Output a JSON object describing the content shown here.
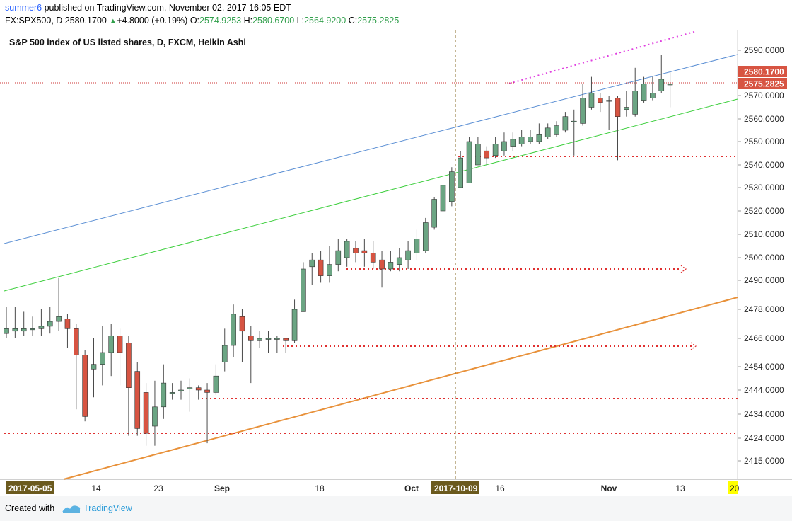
{
  "header": {
    "username": "summer6",
    "published_text": " published on TradingView.com, November 02, 2017 16:05 EDT",
    "symbol": "FX:SPX500, D",
    "last_price": "2580.1700",
    "change": "+4.8000 (+0.19%)",
    "o_label": "O:",
    "o_value": "2574.9253",
    "h_label": "H:",
    "h_value": "2580.6700",
    "l_label": "L:",
    "l_value": "2564.9200",
    "c_label": "C:",
    "c_value": "2575.2825"
  },
  "footer": {
    "created_with": "Created with",
    "brand": "TradingView"
  },
  "chart_data": {
    "type": "candlestick",
    "title": "S&P 500 index of US listed shares, D, FXCM, Heikin Ashi",
    "colors": {
      "up": "#6ba583",
      "down": "#d75442",
      "wick": "#4a4a4a",
      "background": "#ffffff"
    },
    "y_axis": {
      "position": "right",
      "ticks": [
        2415,
        2424,
        2434,
        2444,
        2454,
        2466,
        2478,
        2490,
        2500,
        2510,
        2520,
        2530,
        2540,
        2550,
        2560,
        2570,
        2580,
        2590
      ],
      "tick_labels": [
        "2415.0000",
        "2424.0000",
        "2434.0000",
        "2444.0000",
        "2454.0000",
        "2466.0000",
        "2478.0000",
        "2490.0000",
        "2500.0000",
        "2510.0000",
        "2520.0000",
        "2530.0000",
        "2540.0000",
        "2550.0000",
        "2560.0000",
        "2570.0000",
        "2580.0000",
        "2590.0000"
      ],
      "ylim": [
        2411,
        2593
      ],
      "last_price_label": "2580.1700",
      "close_label": "2575.2825"
    },
    "x_axis": {
      "tick_labels": [
        "14",
        "23",
        "Sep",
        "18",
        "Oct",
        "16",
        "Nov",
        "13"
      ],
      "highlight_labels": [
        "2017-05-05",
        "2017-10-09"
      ],
      "partial_label": "20"
    },
    "candles": [
      [
        2468,
        2470,
        2466,
        2479
      ],
      [
        2469,
        2470,
        2466,
        2479
      ],
      [
        2469,
        2470,
        2467,
        2477
      ],
      [
        2470,
        2470,
        2467,
        2475
      ],
      [
        2470,
        2471,
        2467,
        2478
      ],
      [
        2471,
        2473,
        2468,
        2479
      ],
      [
        2473,
        2475,
        2469,
        2491
      ],
      [
        2474,
        2470,
        2462,
        2476
      ],
      [
        2470,
        2459,
        2436,
        2472
      ],
      [
        2459,
        2433,
        2431,
        2461
      ],
      [
        2453,
        2455,
        2441,
        2466
      ],
      [
        2455,
        2460,
        2446,
        2471
      ],
      [
        2460,
        2467,
        2450,
        2472
      ],
      [
        2467,
        2460,
        2446,
        2470
      ],
      [
        2464,
        2445,
        2425,
        2467
      ],
      [
        2452,
        2428,
        2425,
        2456
      ],
      [
        2443,
        2426,
        2421,
        2447
      ],
      [
        2429,
        2437,
        2421,
        2448
      ],
      [
        2437,
        2447,
        2432,
        2455
      ],
      [
        2443,
        2443,
        2440,
        2447
      ],
      [
        2444,
        2444,
        2440,
        2448
      ],
      [
        2445,
        2445,
        2435,
        2449
      ],
      [
        2445,
        2444,
        2440,
        2446
      ],
      [
        2444,
        2443,
        2422,
        2447
      ],
      [
        2443,
        2450,
        2442,
        2455
      ],
      [
        2456,
        2463,
        2452,
        2470
      ],
      [
        2463,
        2476,
        2458,
        2480
      ],
      [
        2475,
        2469,
        2456,
        2478
      ],
      [
        2467,
        2465,
        2447,
        2471
      ],
      [
        2465,
        2466,
        2462,
        2469
      ],
      [
        2466,
        2466,
        2460,
        2469
      ],
      [
        2466,
        2466,
        2460,
        2467
      ],
      [
        2466,
        2465,
        2460,
        2466
      ],
      [
        2465,
        2478,
        2464,
        2482
      ],
      [
        2477,
        2495,
        2477,
        2498
      ],
      [
        2496,
        2499,
        2488,
        2502
      ],
      [
        2499,
        2492,
        2489,
        2503
      ],
      [
        2492,
        2497,
        2489,
        2505
      ],
      [
        2497,
        2503,
        2494,
        2508
      ],
      [
        2500,
        2507,
        2496,
        2508
      ],
      [
        2504,
        2502,
        2498,
        2507
      ],
      [
        2503,
        2502,
        2496,
        2508
      ],
      [
        2502,
        2498,
        2495,
        2507
      ],
      [
        2499,
        2495,
        2487,
        2503
      ],
      [
        2495,
        2498,
        2494,
        2503
      ],
      [
        2497,
        2500,
        2494,
        2504
      ],
      [
        2499,
        2503,
        2495,
        2507
      ],
      [
        2502,
        2508,
        2499,
        2512
      ],
      [
        2503,
        2515,
        2502,
        2517
      ],
      [
        2513,
        2525,
        2512,
        2526
      ],
      [
        2520,
        2531,
        2519,
        2533
      ],
      [
        2524,
        2537,
        2522,
        2539
      ],
      [
        2530,
        2543,
        2530,
        2546
      ],
      [
        2532,
        2550,
        2532,
        2552
      ],
      [
        2540,
        2549,
        2540,
        2552
      ],
      [
        2546,
        2543,
        2540,
        2548
      ],
      [
        2544,
        2549,
        2543,
        2552
      ],
      [
        2546,
        2550,
        2544,
        2554
      ],
      [
        2548,
        2551,
        2546,
        2554
      ],
      [
        2549,
        2552,
        2548,
        2555
      ],
      [
        2550,
        2552,
        2549,
        2555
      ],
      [
        2550,
        2553,
        2549,
        2558
      ],
      [
        2552,
        2556,
        2551,
        2558
      ],
      [
        2553,
        2557,
        2552,
        2559
      ],
      [
        2555,
        2561,
        2554,
        2563
      ],
      [
        2559,
        2559,
        2544,
        2564
      ],
      [
        2558,
        2569,
        2557,
        2575
      ],
      [
        2565,
        2571,
        2564,
        2578
      ],
      [
        2569,
        2567,
        2563,
        2571
      ],
      [
        2568,
        2568,
        2555,
        2570
      ],
      [
        2569,
        2561,
        2542,
        2570
      ],
      [
        2564,
        2565,
        2561,
        2572
      ],
      [
        2562,
        2572,
        2561,
        2582
      ],
      [
        2568,
        2575,
        2567,
        2578
      ],
      [
        2569,
        2571,
        2568,
        2578
      ],
      [
        2572,
        2577,
        2571,
        2588
      ],
      [
        2575,
        2575,
        2565,
        2580
      ]
    ]
  }
}
